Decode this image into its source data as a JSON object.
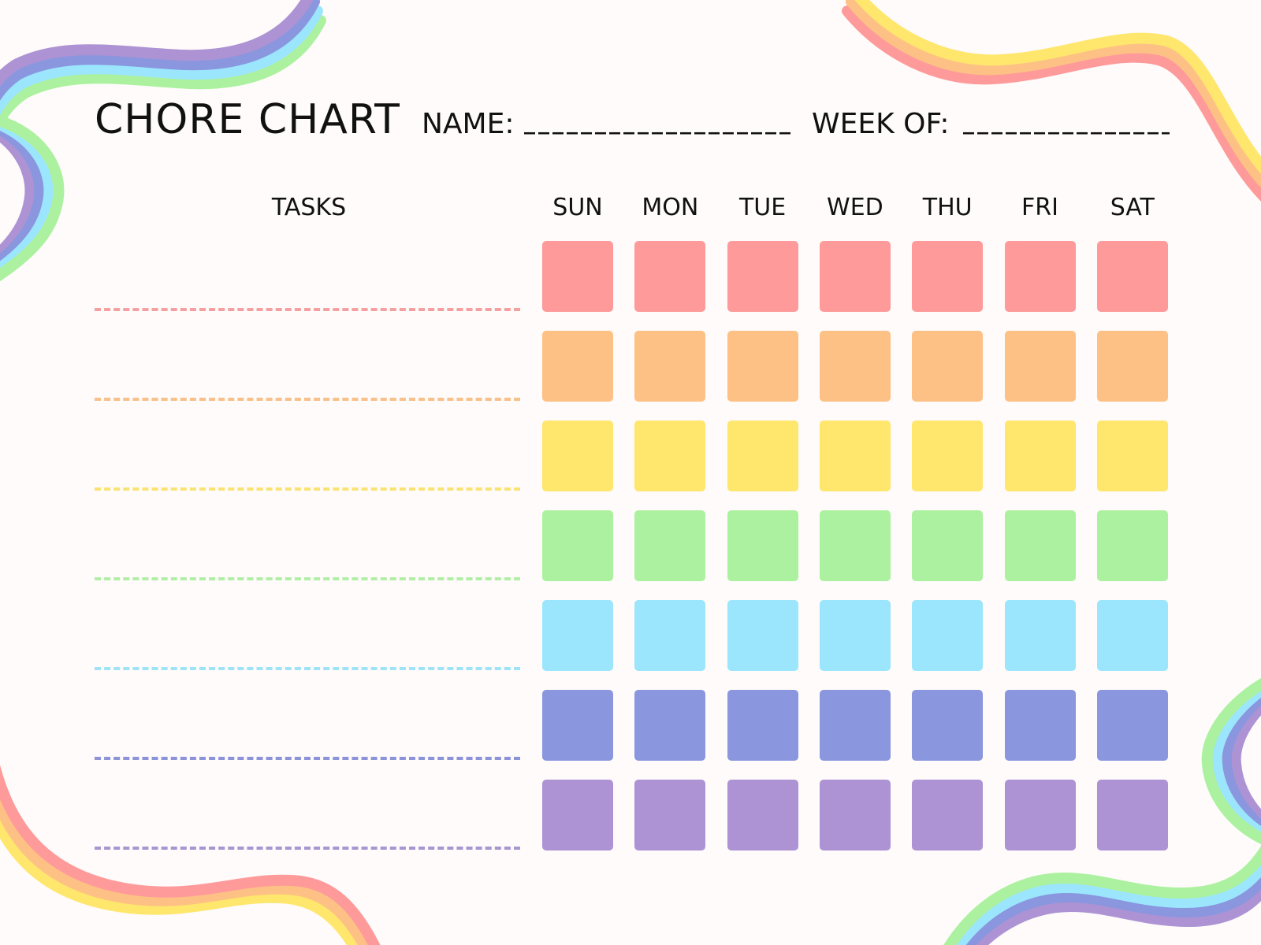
{
  "header": {
    "title": "CHORE CHART",
    "name_label": "NAME:",
    "name_blank": "___________________",
    "week_label": "WEEK OF:",
    "week_blank": "_______________"
  },
  "table": {
    "tasks_header": "TASKS",
    "days": [
      "SUN",
      "MON",
      "TUE",
      "WED",
      "THU",
      "FRI",
      "SAT"
    ],
    "row_colors": [
      "#FE9A9A",
      "#FDC185",
      "#FFE66C",
      "#ACF19F",
      "#9BE6FC",
      "#8A96DE",
      "#AD93D4"
    ],
    "line_colors": [
      "#F4A0A0",
      "#F8C08A",
      "#FAE374",
      "#B2EEA6",
      "#9FE3F7",
      "#8C93D8",
      "#A696D2"
    ]
  },
  "decoration": {
    "rainbow_cool": [
      "#AD93D4",
      "#8A96DE",
      "#9BE6FC",
      "#ACF19F"
    ],
    "rainbow_warm": [
      "#FFE66C",
      "#FDC185",
      "#FE9A9A"
    ]
  }
}
